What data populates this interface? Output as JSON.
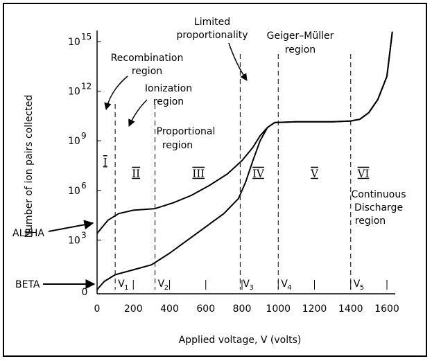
{
  "chart_data": {
    "type": "line",
    "xlabel": "Applied voltage, V (volts)",
    "ylabel": "Number of ion pairs collected",
    "x_ticks": [
      "0",
      "200",
      "400",
      "600",
      "800",
      "1000",
      "1200",
      "1400",
      "1600"
    ],
    "y_ticks": [
      {
        "base": "10",
        "exp": "15"
      },
      {
        "base": "10",
        "exp": "12"
      },
      {
        "base": "10",
        "exp": "9"
      },
      {
        "base": "10",
        "exp": "6"
      },
      {
        "base": "10",
        "exp": "3"
      },
      {
        "base": "",
        "exp": "",
        "plain": "0"
      }
    ],
    "xlim": [
      0,
      1650
    ],
    "y_scale": "log",
    "series": [
      {
        "name": "ALPHA",
        "x": [
          0,
          60,
          120,
          200,
          320,
          420,
          520,
          620,
          720,
          800,
          860,
          900,
          940,
          980,
          1100,
          1200,
          1300,
          1400,
          1450,
          1500,
          1550,
          1600,
          1630
        ],
        "log10_y": [
          3.4,
          4.2,
          4.6,
          4.8,
          4.9,
          5.25,
          5.7,
          6.3,
          7.0,
          7.8,
          8.6,
          9.3,
          9.8,
          10.1,
          10.15,
          10.15,
          10.15,
          10.2,
          10.3,
          10.7,
          11.5,
          12.9,
          15.6
        ]
      },
      {
        "name": "BETA",
        "x": [
          0,
          40,
          100,
          200,
          300,
          400,
          500,
          600,
          700,
          780,
          820,
          860,
          900,
          940,
          980,
          1100,
          1200,
          1300,
          1400,
          1450,
          1500,
          1550,
          1600,
          1630
        ],
        "log10_y": [
          0.0,
          0.5,
          0.9,
          1.2,
          1.5,
          2.2,
          3.0,
          3.8,
          4.6,
          5.5,
          6.5,
          7.8,
          9.0,
          9.8,
          10.1,
          10.15,
          10.15,
          10.15,
          10.2,
          10.3,
          10.7,
          11.5,
          12.9,
          15.6
        ]
      }
    ],
    "boundaries": [
      {
        "label": "V",
        "sub": "1",
        "x": 100
      },
      {
        "label": "V",
        "sub": "2",
        "x": 320
      },
      {
        "label": "V",
        "sub": "3",
        "x": 790
      },
      {
        "label": "V",
        "sub": "4",
        "x": 1000
      },
      {
        "label": "V",
        "sub": "5",
        "x": 1400
      }
    ],
    "region_numerals": [
      {
        "text": "I",
        "x": 45,
        "log10_y": 7.5
      },
      {
        "text": "II",
        "x": 215,
        "log10_y": 6.8
      },
      {
        "text": "III",
        "x": 560,
        "log10_y": 6.8
      },
      {
        "text": "IV",
        "x": 890,
        "log10_y": 6.8
      },
      {
        "text": "V",
        "x": 1200,
        "log10_y": 6.8
      },
      {
        "text": "VI",
        "x": 1470,
        "log10_y": 6.8
      }
    ],
    "annotations": {
      "recombination": [
        "Recombination",
        "region"
      ],
      "ionization": [
        "Ionization",
        "region"
      ],
      "limited": [
        "Limited",
        "proportionality"
      ],
      "geiger": [
        "Geiger–Müller",
        "region"
      ],
      "proportional": [
        "Proportional",
        "region"
      ],
      "continuous": [
        "Continuous",
        "Discharge",
        "region"
      ],
      "alpha": "ALPHA",
      "beta": "BETA"
    },
    "grid": false
  }
}
